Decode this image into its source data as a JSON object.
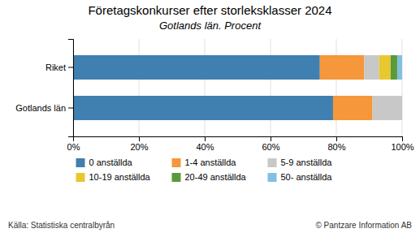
{
  "chart_data": {
    "type": "bar",
    "orientation": "horizontal",
    "stacked": true,
    "title": "Företagskonkurser efter storleksklasser 2024",
    "subtitle": "Gotlands län. Procent",
    "categories": [
      "Riket",
      "Gotlands län"
    ],
    "series": [
      {
        "name": "0 anställda",
        "color": "#4080b0",
        "values": [
          75.0,
          79.0
        ]
      },
      {
        "name": "1-4 anställda",
        "color": "#f5973a",
        "values": [
          13.5,
          12.0
        ]
      },
      {
        "name": "5-9 anställda",
        "color": "#c8c8c8",
        "values": [
          4.5,
          9.0
        ]
      },
      {
        "name": "10-19 anställda",
        "color": "#e8c830",
        "values": [
          3.5,
          0.0
        ]
      },
      {
        "name": "20-49 anställda",
        "color": "#5a9a3a",
        "values": [
          2.0,
          0.0
        ]
      },
      {
        "name": "50- anställda",
        "color": "#82c0e0",
        "values": [
          1.5,
          0.0
        ]
      }
    ],
    "xlim": [
      0,
      100
    ],
    "xticks": [
      {
        "value": 0,
        "label": "0%"
      },
      {
        "value": 20,
        "label": "20%"
      },
      {
        "value": 40,
        "label": "40%"
      },
      {
        "value": 60,
        "label": "60%"
      },
      {
        "value": 80,
        "label": "80%"
      },
      {
        "value": 100,
        "label": "100%"
      }
    ],
    "grid": true,
    "legend": "bottom",
    "annotations": [
      "Källa: Statistiska centralbyrån",
      "© Pantzare Information AB"
    ]
  }
}
